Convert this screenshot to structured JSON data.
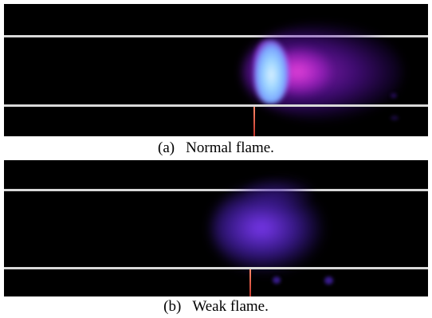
{
  "figure": {
    "panel_a": {
      "tag": "(a)",
      "caption": "Normal flame."
    },
    "panel_b": {
      "tag": "(b)",
      "caption": "Weak flame."
    }
  },
  "colors": {
    "background": "#000000",
    "guide_line": "#d8d8d8",
    "probe": "#c0322a",
    "normal_flame_core": "#9cd4ff",
    "normal_flame_glow": "#aa28dc",
    "weak_flame_glow": "#823cff"
  }
}
